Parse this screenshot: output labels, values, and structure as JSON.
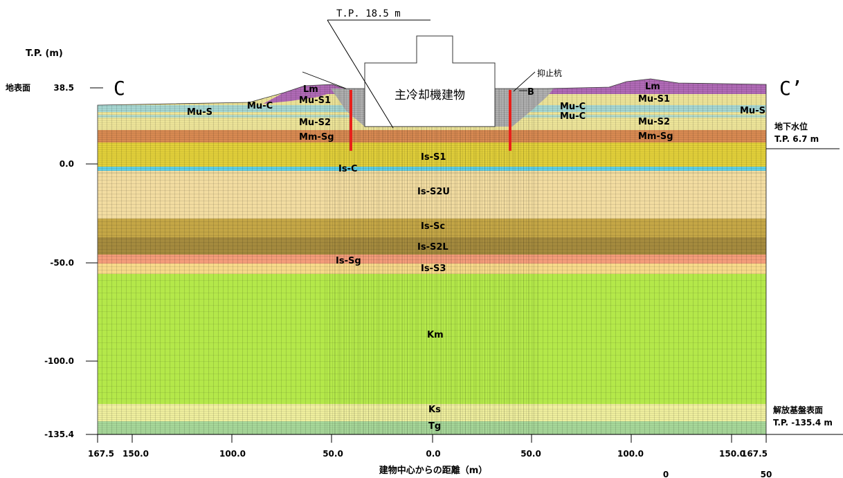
{
  "axis": {
    "y_title": "T.P. (m)",
    "surface_label": "地表面",
    "y_ticks": [
      "38.5",
      "0.0",
      "-50.0",
      "-100.0",
      "-135.4"
    ],
    "x_ticks": [
      "167.5",
      "150.0",
      "100.0",
      "50.0",
      "0.0",
      "50.0",
      "100.0",
      "150.0",
      "167.5"
    ],
    "x_title": "建物中心からの距離（m）"
  },
  "section": {
    "left_label": "C",
    "right_label": "C’"
  },
  "building": {
    "label": "主冷却機建物",
    "elevation_label": "T.P. 18.5 m"
  },
  "pile_label": "抑止杭",
  "backfill_label": "B",
  "groundwater": {
    "title": "地下水位",
    "value": "T.P. 6.7 m"
  },
  "bedrock": {
    "title": "解放基盤表面",
    "value": "T.P. -135.4 m"
  },
  "scale_bar": {
    "start": "0",
    "end": "50"
  },
  "layer_labels": {
    "lm_left": "Lm",
    "mus1_left": "Mu-S1",
    "muc_left": "Mu-C",
    "mus_left": "Mu-S",
    "mus2_left": "Mu-S2",
    "mmsg_left": "Mm-Sg",
    "lm_right": "Lm",
    "mus1_right": "Mu-S1",
    "muc_right_1": "Mu-C",
    "muc_right_2": "Mu-C",
    "mus_right": "Mu-S",
    "mus2_right": "Mu-S2",
    "mmsg_right": "Mm-Sg",
    "iss1": "Is-S1",
    "isc": "Is-C",
    "iss2u": "Is-S2U",
    "issc": "Is-Sc",
    "iss2l": "Is-S2L",
    "issg": "Is-Sg",
    "iss3": "Is-S3",
    "km": "Km",
    "ks": "Ks",
    "tg": "Tg"
  },
  "colors": {
    "lm": "#b06ab6",
    "mu": "#efe69a",
    "mu_s": "#8fd3e6",
    "mm_sg": "#d98a52",
    "is_s1": "#e3d13a",
    "is_c": "#5fd0e6",
    "is_s2u": "#f2dca0",
    "is_sc": "#c4a646",
    "is_s2l": "#a48a3e",
    "is_sg": "#f39c7a",
    "is_s3": "#f7d98a",
    "km": "#b4e84a",
    "ks": "#efef9e",
    "tg": "#a8d99a",
    "backfill": "#b0b0b0",
    "pile": "#e8201a"
  }
}
